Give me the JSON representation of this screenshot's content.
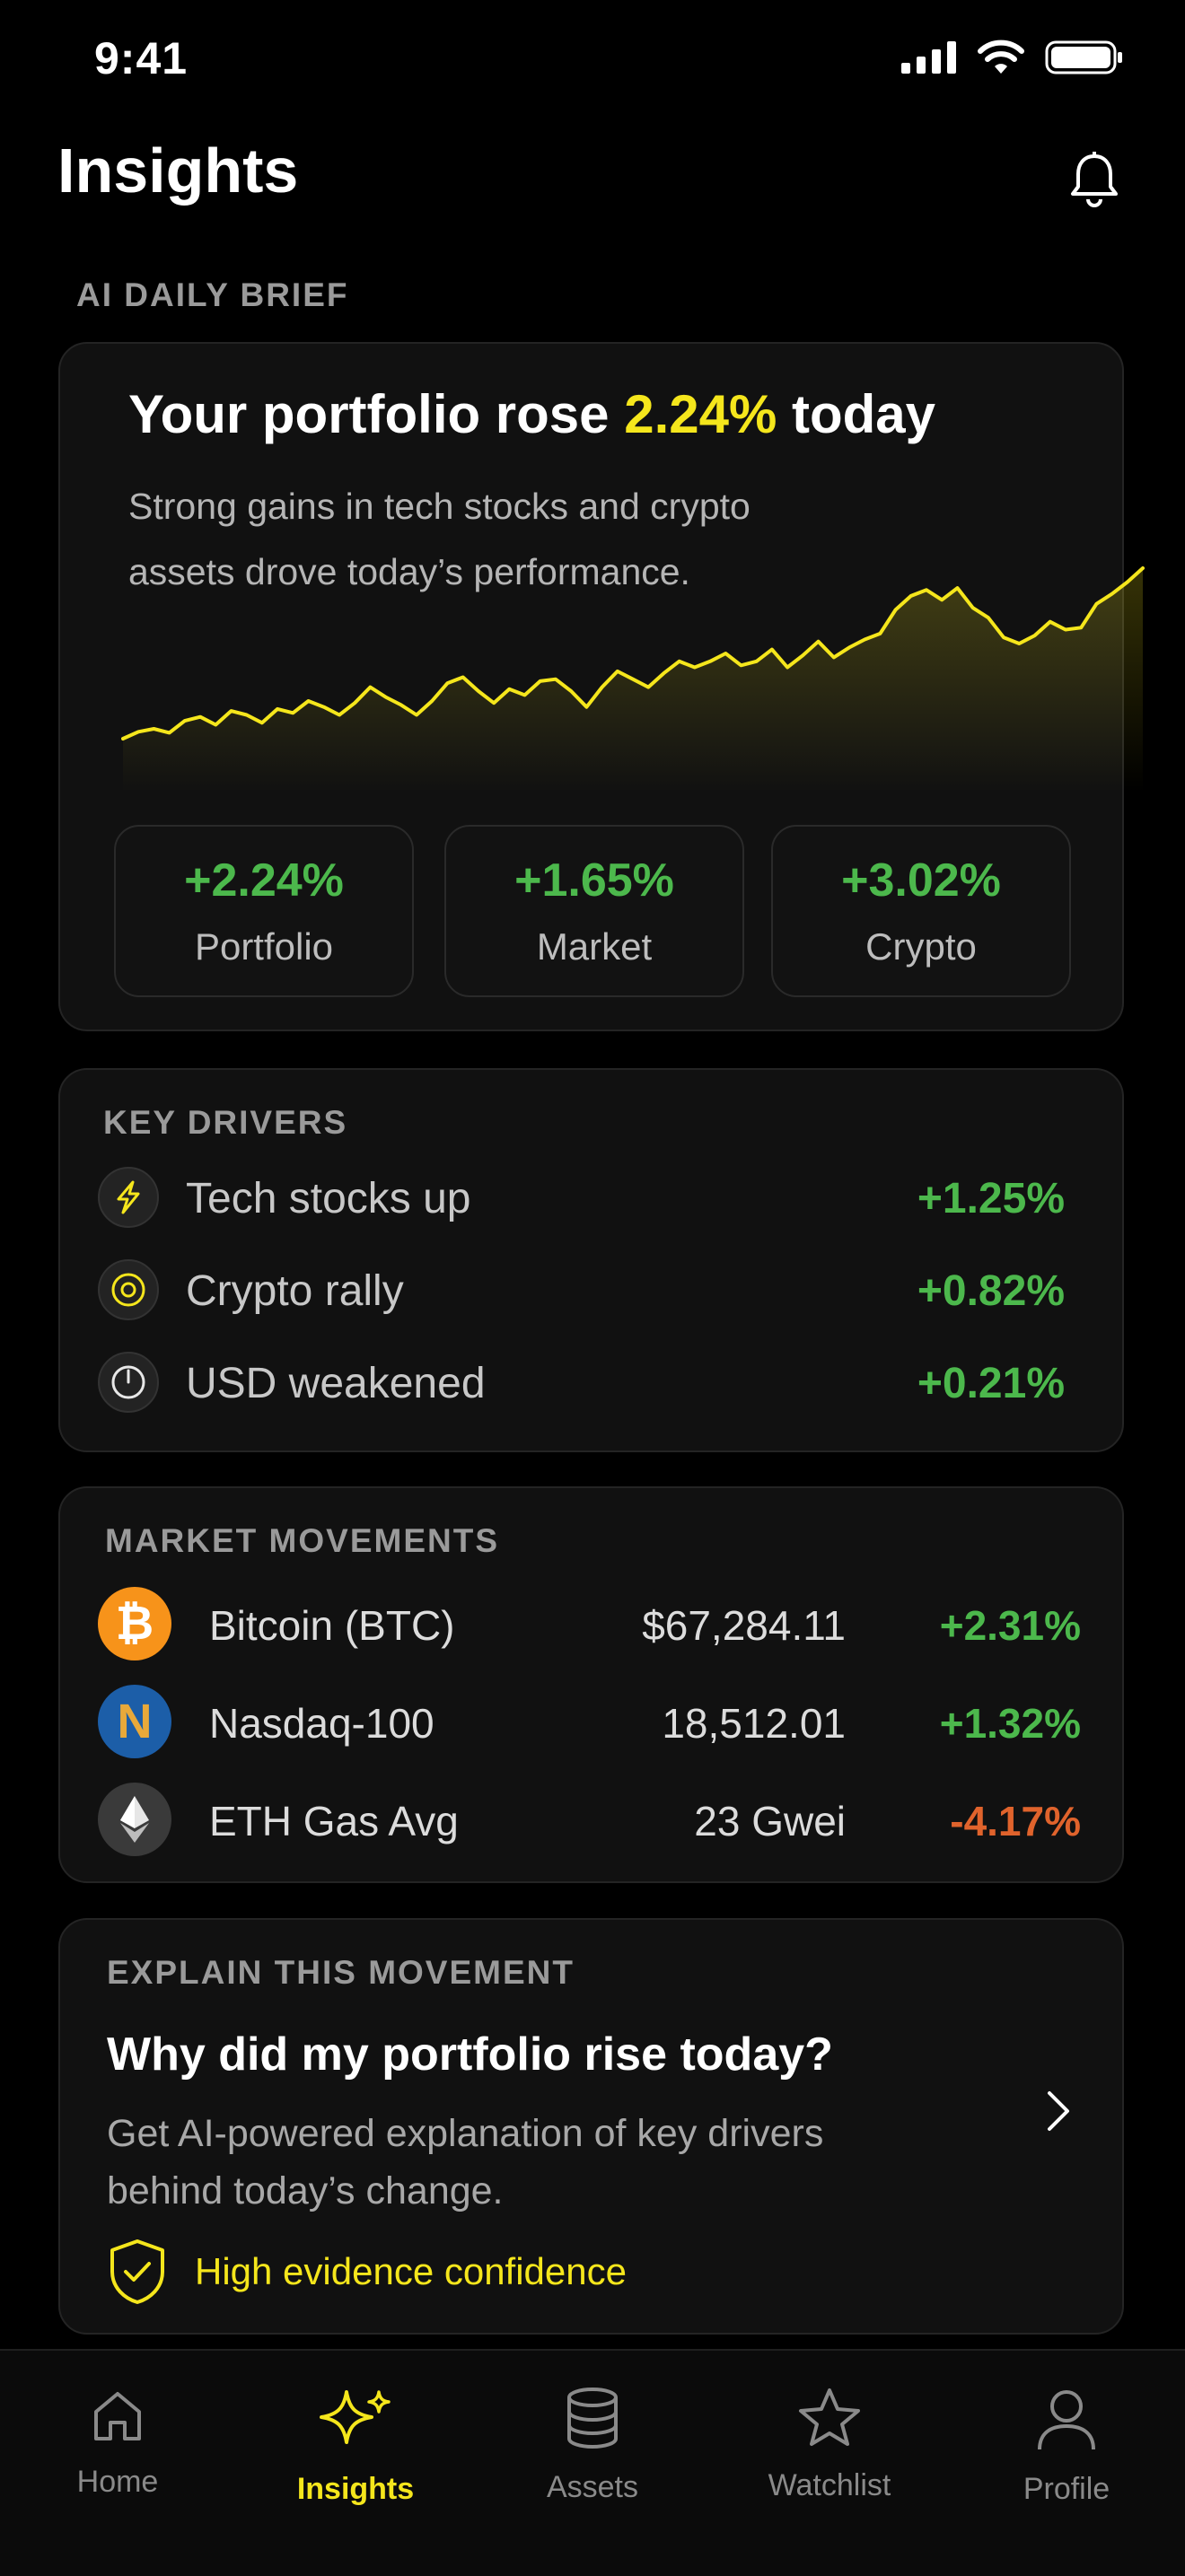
{
  "status": {
    "time": "9:41"
  },
  "header": {
    "title": "Insights"
  },
  "brief": {
    "section_label": "AI DAILY BRIEF",
    "headline_pre": "Your portfolio rose ",
    "headline_value": "2.24%",
    "headline_post": " today",
    "summary": "Strong gains in tech stocks and crypto assets drove today’s performance.",
    "chart_data": {
      "type": "area",
      "series": [
        {
          "values": [
            0.0,
            0.35,
            0.5,
            0.3,
            0.9,
            1.1,
            0.7,
            1.4,
            1.2,
            0.8,
            1.5,
            1.3,
            1.9,
            1.6,
            1.2,
            1.8,
            2.6,
            2.1,
            1.7,
            1.2,
            1.9,
            2.8,
            3.1,
            2.4,
            1.8,
            2.5,
            2.2,
            2.9,
            3.0,
            2.4,
            1.6,
            2.6,
            3.4,
            3.0,
            2.6,
            3.3,
            3.9,
            3.6,
            3.9,
            4.3,
            3.7,
            3.9,
            4.5,
            3.6,
            4.2,
            4.9,
            4.1,
            4.6,
            5.0,
            5.3,
            6.5,
            7.2,
            7.5,
            7.0,
            7.6,
            6.6,
            6.1,
            5.1,
            4.8,
            5.2,
            5.9,
            5.5,
            5.6,
            6.8,
            7.3,
            7.9,
            8.6
          ]
        }
      ],
      "color": "#f5e61c"
    },
    "stats": [
      {
        "value": "+2.24%",
        "label": "Portfolio"
      },
      {
        "value": "+1.65%",
        "label": "Market"
      },
      {
        "value": "+3.02%",
        "label": "Crypto"
      }
    ]
  },
  "drivers": {
    "section_label": "KEY DRIVERS",
    "items": [
      {
        "label": "Tech stocks up",
        "value": "+1.25%",
        "icon": "lightning-icon"
      },
      {
        "label": "Crypto rally",
        "value": "+0.82%",
        "icon": "target-icon"
      },
      {
        "label": "USD weakened",
        "value": "+0.21%",
        "icon": "gauge-icon"
      }
    ]
  },
  "movements": {
    "section_label": "MARKET MOVEMENTS",
    "items": [
      {
        "name": "Bitcoin (BTC)",
        "price": "$67,284.11",
        "change": "+2.31%",
        "icon": "bitcoin-icon",
        "icon_text": "₿",
        "color": "#f7931a"
      },
      {
        "name": "Nasdaq-100",
        "price": "18,512.01",
        "change": "+1.32%",
        "icon": "nasdaq-icon",
        "icon_text": "N",
        "color": "#1c5ea8"
      },
      {
        "name": "ETH Gas Avg",
        "price": "23 Gwei",
        "change": "-4.17%",
        "icon": "ethereum-icon",
        "icon_text": "",
        "color": "#3a3a3a"
      }
    ]
  },
  "explain": {
    "section_label": "EXPLAIN THIS MOVEMENT",
    "question": "Why did my portfolio rise today?",
    "description": "Get AI-powered explanation of key drivers behind today’s change.",
    "confidence": "High evidence confidence"
  },
  "tabs": [
    {
      "label": "Home",
      "icon": "home-icon"
    },
    {
      "label": "Insights",
      "icon": "sparkle-icon"
    },
    {
      "label": "Assets",
      "icon": "database-icon"
    },
    {
      "label": "Watchlist",
      "icon": "star-icon"
    },
    {
      "label": "Profile",
      "icon": "person-icon"
    }
  ],
  "active_tab": "Insights"
}
